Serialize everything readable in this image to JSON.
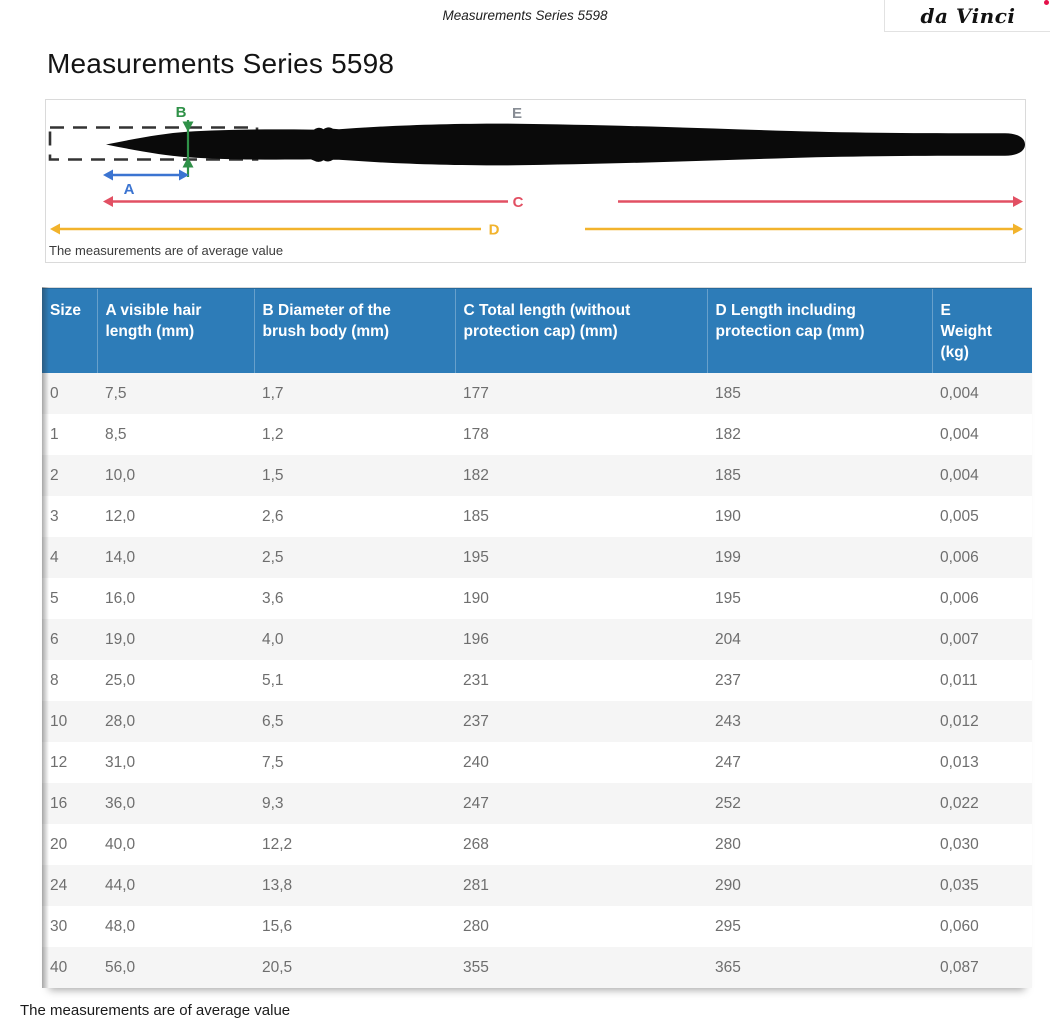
{
  "top_bar": {
    "title": "Measurements Series 5598"
  },
  "logo": {
    "text": "da Vinci",
    "dot_color": "#e4114a"
  },
  "title": "Measurements Series 5598",
  "diagram": {
    "caption": "The measurements are of average value",
    "labels": {
      "a": "A",
      "b": "B",
      "c": "C",
      "d": "D",
      "e": "E"
    },
    "colors": {
      "a_blue": "#3b74d1",
      "b_green": "#2f9148",
      "c_red": "#e25063",
      "d_yellow": "#f2b32c",
      "e_gray": "#878c94",
      "brush_black": "#0a0a0a",
      "cap_dash": "#333333",
      "header_blue": "#2d7cb8",
      "row_alt_gray": "#f5f5f5"
    }
  },
  "table": {
    "header_bg": "#2d7cb8",
    "columns": [
      "Size",
      "A visible hair length (mm)",
      "B Diameter of the brush body (mm)",
      "C Total length (without protection cap) (mm)",
      "D Length including protection cap (mm)",
      "E Weight (kg)"
    ],
    "rows": [
      [
        "0",
        "7,5",
        "1,7",
        "177",
        "185",
        "0,004"
      ],
      [
        "1",
        "8,5",
        "1,2",
        "178",
        "182",
        "0,004"
      ],
      [
        "2",
        "10,0",
        "1,5",
        "182",
        "185",
        "0,004"
      ],
      [
        "3",
        "12,0",
        "2,6",
        "185",
        "190",
        "0,005"
      ],
      [
        "4",
        "14,0",
        "2,5",
        "195",
        "199",
        "0,006"
      ],
      [
        "5",
        "16,0",
        "3,6",
        "190",
        "195",
        "0,006"
      ],
      [
        "6",
        "19,0",
        "4,0",
        "196",
        "204",
        "0,007"
      ],
      [
        "8",
        "25,0",
        "5,1",
        "231",
        "237",
        "0,011"
      ],
      [
        "10",
        "28,0",
        "6,5",
        "237",
        "243",
        "0,012"
      ],
      [
        "12",
        "31,0",
        "7,5",
        "240",
        "247",
        "0,013"
      ],
      [
        "16",
        "36,0",
        "9,3",
        "247",
        "252",
        "0,022"
      ],
      [
        "20",
        "40,0",
        "12,2",
        "268",
        "280",
        "0,030"
      ],
      [
        "24",
        "44,0",
        "13,8",
        "281",
        "290",
        "0,035"
      ],
      [
        "30",
        "48,0",
        "15,6",
        "280",
        "295",
        "0,060"
      ],
      [
        "40",
        "56,0",
        "20,5",
        "355",
        "365",
        "0,087"
      ]
    ]
  },
  "footer_caption": "The measurements are of average value"
}
